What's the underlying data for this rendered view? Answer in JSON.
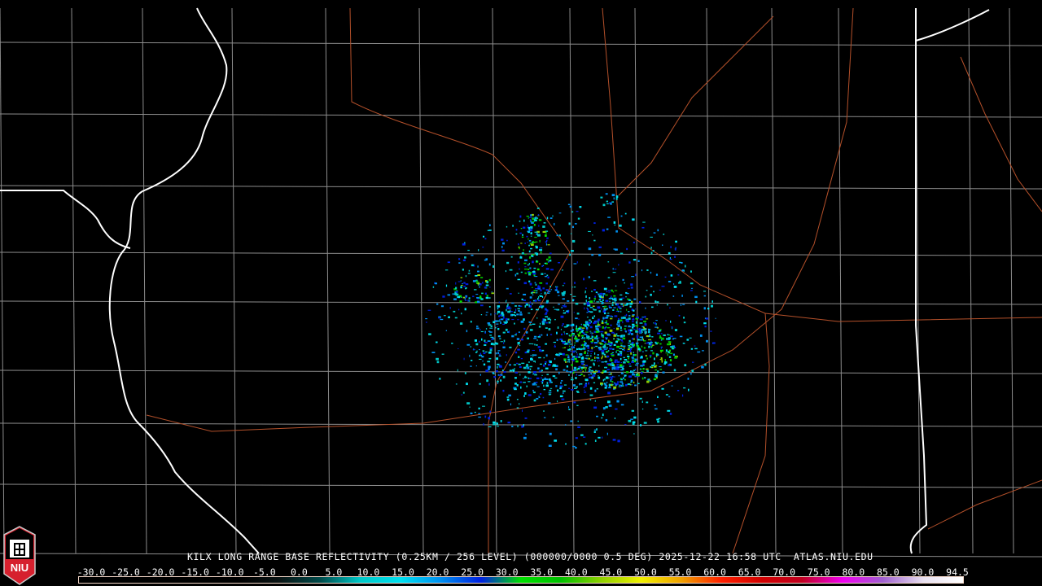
{
  "product": {
    "title": "KILX LONG RANGE BASE REFLECTIVITY (0.25KM / 256 LEVEL) (000000/0000 0.5 DEG) 2025-12-22 16:58 UTC  ATLAS.NIU.EDU",
    "radar_site": "KILX",
    "timestamp": "2025-12-22 16:58 UTC",
    "elevation": "0.5 DEG",
    "source": "ATLAS.NIU.EDU"
  },
  "logo": {
    "text": "NIU",
    "colors": {
      "red": "#d6202e",
      "white": "#ffffff"
    }
  },
  "legend": {
    "ticks": [
      "-30.0",
      "-25.0",
      "-20.0",
      "-15.0",
      "-10.0",
      "-5.0",
      "0.0",
      "5.0",
      "10.0",
      "15.0",
      "20.0",
      "25.0",
      "30.0",
      "35.0",
      "40.0",
      "45.0",
      "50.0",
      "55.0",
      "60.0",
      "65.0",
      "70.0",
      "75.0",
      "80.0",
      "85.0",
      "90.0",
      "94.5"
    ],
    "colors": [
      "#000000",
      "#000000",
      "#000000",
      "#000000",
      "#000000",
      "#0a1414",
      "#004a4a",
      "#00c8c8",
      "#00e0f0",
      "#0090f0",
      "#0020e0",
      "#00e000",
      "#00c000",
      "#90d000",
      "#f0f000",
      "#f0a000",
      "#ff2000",
      "#d00000",
      "#c00020",
      "#f000f0",
      "#a060d0",
      "#e8e0f0",
      "#ffffff"
    ]
  },
  "map_colors": {
    "state_border": "#ffffff",
    "county_border": "#8c8c8c",
    "highway": "#b4502a"
  }
}
